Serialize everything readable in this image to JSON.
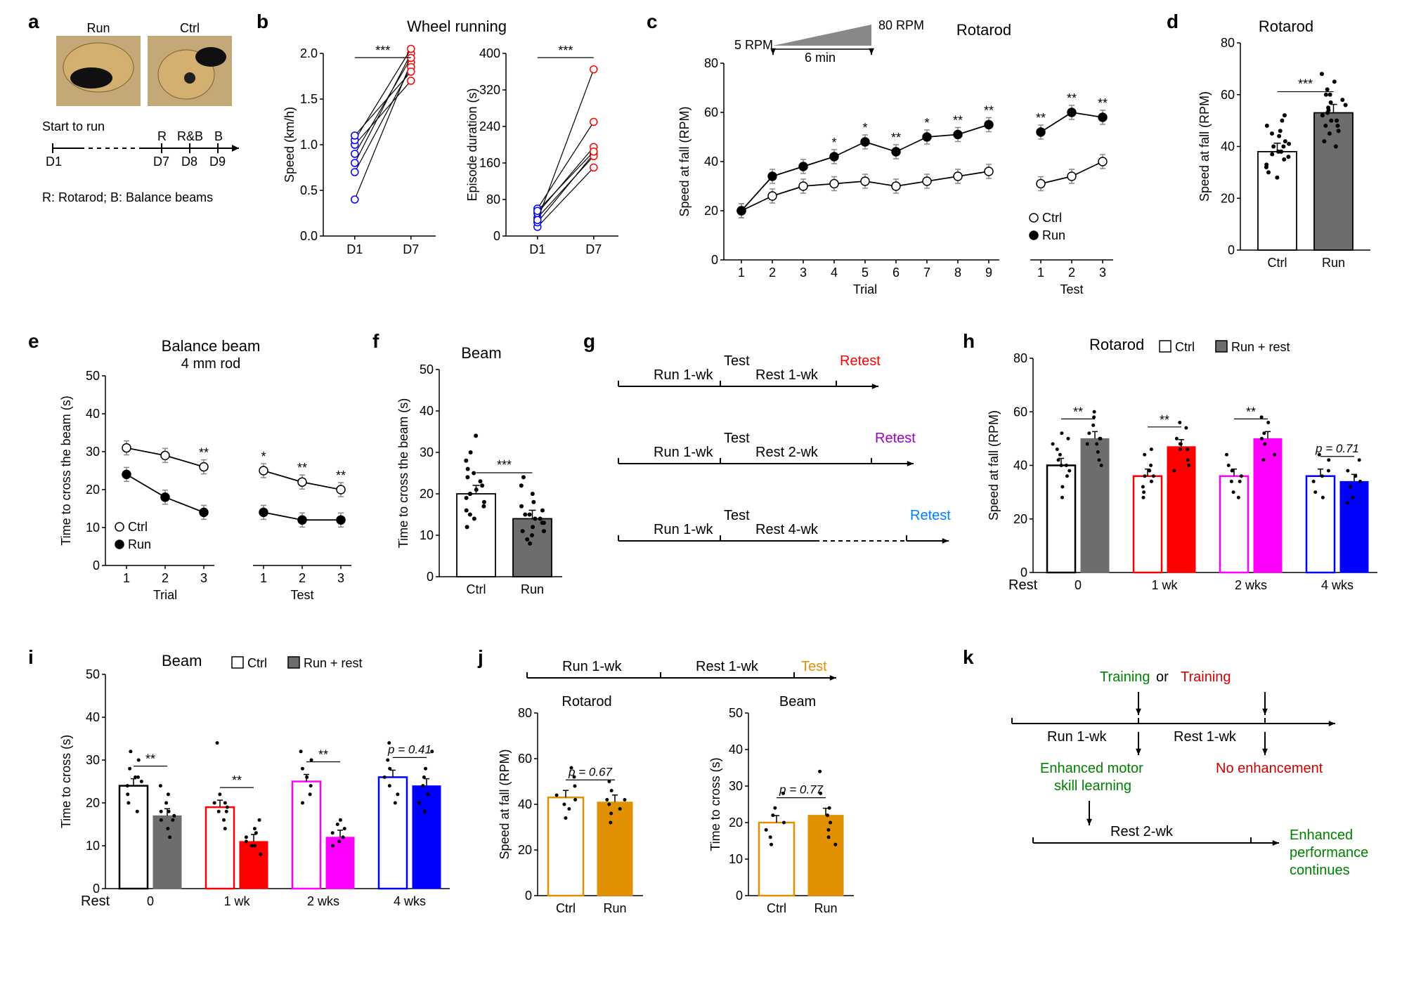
{
  "labels": {
    "a": "a",
    "b": "b",
    "c": "c",
    "d": "d",
    "e": "e",
    "f": "f",
    "g": "g",
    "h": "h",
    "i": "i",
    "j": "j",
    "k": "k"
  },
  "panel_a": {
    "run_label": "Run",
    "ctrl_label": "Ctrl",
    "timeline": {
      "start": "Start to run",
      "d1": "D1",
      "d7": "D7",
      "d8": "D8",
      "d9": "D9",
      "r": "R",
      "rb": "R&B",
      "b": "B"
    },
    "legend": "R: Rotarod; B: Balance beams"
  },
  "panel_b": {
    "title": "Wheel running",
    "chart1": {
      "ylabel": "Speed (km/h)",
      "ylim": [
        0,
        2.0
      ],
      "ytick_step": 0.5,
      "x": [
        "D1",
        "D7"
      ],
      "sig": "***",
      "d1_color": "#0000ff",
      "d7_color": "#ff0000",
      "pairs": [
        [
          0.4,
          1.9
        ],
        [
          0.7,
          1.85
        ],
        [
          0.8,
          2.0
        ],
        [
          0.9,
          1.95
        ],
        [
          1.0,
          1.7
        ],
        [
          1.05,
          2.05
        ],
        [
          1.1,
          1.8
        ]
      ]
    },
    "chart2": {
      "ylabel": "Episode duration (s)",
      "ylim": [
        0,
        400
      ],
      "ytick_step": 80,
      "x": [
        "D1",
        "D7"
      ],
      "sig": "***",
      "pairs": [
        [
          20,
          150
        ],
        [
          30,
          180
        ],
        [
          40,
          175
        ],
        [
          50,
          195
        ],
        [
          60,
          250
        ],
        [
          55,
          185
        ],
        [
          35,
          365
        ]
      ]
    }
  },
  "panel_c": {
    "title": "Rotarod",
    "schematic": {
      "lo": "5 RPM",
      "hi": "80 RPM",
      "dur": "6 min"
    },
    "ylabel": "Speed at fall (RPM)",
    "ylim": [
      0,
      80
    ],
    "ytick_step": 20,
    "x_trial": [
      1,
      2,
      3,
      4,
      5,
      6,
      7,
      8,
      9
    ],
    "x_test": [
      1,
      2,
      3
    ],
    "xlabel1": "Trial",
    "xlabel2": "Test",
    "ctrl_label": "Ctrl",
    "run_label": "Run",
    "ctrl_color": "#ffffff",
    "run_color": "#000000",
    "line_color": "#000000",
    "err_color": "#888888",
    "ctrl_trial": [
      20,
      26,
      30,
      31,
      32,
      30,
      32,
      34,
      36
    ],
    "run_trial": [
      20,
      34,
      38,
      42,
      48,
      44,
      50,
      51,
      55
    ],
    "ctrl_test": [
      31,
      34,
      40
    ],
    "run_test": [
      52,
      60,
      58
    ],
    "sig_trial": [
      "",
      "",
      "",
      "*",
      "*",
      "**",
      "*",
      "**",
      "**"
    ],
    "sig_test": [
      "**",
      "**",
      "**"
    ]
  },
  "panel_d": {
    "title": "Rotarod",
    "ylabel": "Speed at fall (RPM)",
    "ylim": [
      0,
      80
    ],
    "ytick_step": 20,
    "x": [
      "Ctrl",
      "Run"
    ],
    "ctrl_val": 38,
    "run_val": 53,
    "ctrl_fill": "#ffffff",
    "run_fill": "#6d6d6d",
    "stroke": "#000000",
    "sig": "***",
    "ctrl_pts": [
      30,
      32,
      35,
      36,
      38,
      38,
      40,
      40,
      42,
      44,
      46,
      48,
      50,
      52,
      33,
      28,
      45,
      38,
      41,
      37
    ],
    "run_pts": [
      40,
      42,
      45,
      48,
      50,
      52,
      54,
      55,
      56,
      58,
      60,
      62,
      65,
      68,
      60,
      57,
      53,
      48,
      50,
      46
    ]
  },
  "panel_e": {
    "title": "Balance beam",
    "subtitle": "4 mm rod",
    "ylabel": "Time to cross the beam (s)",
    "ylim": [
      0,
      50
    ],
    "ytick_step": 10,
    "x_trial": [
      1,
      2,
      3
    ],
    "x_test": [
      1,
      2,
      3
    ],
    "xlabel1": "Trial",
    "xlabel2": "Test",
    "ctrl_label": "Ctrl",
    "run_label": "Run",
    "ctrl_trial": [
      31,
      29,
      26
    ],
    "run_trial": [
      24,
      18,
      14
    ],
    "ctrl_test": [
      25,
      22,
      20
    ],
    "run_test": [
      14,
      12,
      12
    ],
    "sig_trial": [
      "",
      "",
      "**"
    ],
    "sig_test": [
      "*",
      "**",
      "**"
    ]
  },
  "panel_f": {
    "title": "Beam",
    "ylabel": "Time to cross the beam (s)",
    "ylim": [
      0,
      50
    ],
    "ytick_step": 10,
    "x": [
      "Ctrl",
      "Run"
    ],
    "ctrl_val": 20,
    "run_val": 14,
    "ctrl_fill": "#ffffff",
    "run_fill": "#6d6d6d",
    "sig": "***",
    "ctrl_pts": [
      12,
      14,
      16,
      18,
      19,
      20,
      20,
      21,
      22,
      24,
      26,
      28,
      30,
      34,
      15,
      23,
      25,
      17
    ],
    "run_pts": [
      8,
      10,
      11,
      12,
      13,
      14,
      14,
      15,
      16,
      17,
      18,
      20,
      22,
      24,
      9,
      13,
      15,
      11
    ]
  },
  "panel_g": {
    "rows": [
      {
        "run": "Run 1-wk",
        "test": "Test",
        "rest": "Rest 1-wk",
        "retest": "Retest",
        "retest_color": "#ff0000"
      },
      {
        "run": "Run 1-wk",
        "test": "Test",
        "rest": "Rest 2-wk",
        "retest": "Retest",
        "retest_color": "#a000c0"
      },
      {
        "run": "Run 1-wk",
        "test": "Test",
        "rest": "Rest 4-wk",
        "retest": "Retest",
        "retest_color": "#0080ff"
      }
    ]
  },
  "panel_h": {
    "title": "Rotarod",
    "legend_ctrl": "Ctrl",
    "legend_run": "Run + rest",
    "ylabel": "Speed at fall (RPM)",
    "ylim": [
      0,
      80
    ],
    "ytick_step": 20,
    "xlabel": "Rest",
    "groups": [
      {
        "label": "0",
        "ctrl": 40,
        "run": 50,
        "sig": "**",
        "ctrl_color": "#000000",
        "run_fill": "#6d6d6d",
        "p": null
      },
      {
        "label": "1 wk",
        "ctrl": 36,
        "run": 47,
        "sig": "**",
        "ctrl_color": "#ff0000",
        "run_fill": "#ff0000",
        "p": null
      },
      {
        "label": "2 wks",
        "ctrl": 36,
        "run": 50,
        "sig": "**",
        "ctrl_color": "#ff00ff",
        "run_fill": "#ff00ff",
        "p": null
      },
      {
        "label": "4 wks",
        "ctrl": 36,
        "run": 34,
        "sig": "",
        "ctrl_color": "#0000ff",
        "run_fill": "#0000ff",
        "p": "p = 0.71"
      }
    ],
    "scatter_ctrl": [
      [
        28,
        32,
        36,
        38,
        40,
        42,
        44,
        46,
        48,
        50,
        52,
        40
      ],
      [
        28,
        30,
        32,
        34,
        36,
        38,
        40,
        44,
        46,
        36
      ],
      [
        28,
        30,
        34,
        36,
        38,
        40,
        44,
        34
      ],
      [
        28,
        30,
        34,
        36,
        38,
        42,
        44
      ]
    ],
    "scatter_run": [
      [
        40,
        42,
        45,
        48,
        50,
        52,
        55,
        58,
        60,
        48,
        50
      ],
      [
        38,
        40,
        42,
        46,
        48,
        50,
        54,
        56,
        46,
        48
      ],
      [
        42,
        44,
        48,
        50,
        52,
        56,
        58
      ],
      [
        26,
        28,
        32,
        34,
        36,
        38,
        42
      ]
    ]
  },
  "panel_i": {
    "title": "Beam",
    "legend_ctrl": "Ctrl",
    "legend_run": "Run + rest",
    "ylabel": "Time to cross (s)",
    "ylim": [
      0,
      50
    ],
    "ytick_step": 10,
    "xlabel": "Rest",
    "groups": [
      {
        "label": "0",
        "ctrl": 24,
        "run": 17,
        "sig": "**",
        "ctrl_color": "#000000",
        "run_fill": "#6d6d6d",
        "p": null
      },
      {
        "label": "1 wk",
        "ctrl": 19,
        "run": 11,
        "sig": "**",
        "ctrl_color": "#ff0000",
        "run_fill": "#ff0000",
        "p": null
      },
      {
        "label": "2 wks",
        "ctrl": 25,
        "run": 12,
        "sig": "**",
        "ctrl_color": "#ff00ff",
        "run_fill": "#ff00ff",
        "p": null
      },
      {
        "label": "4 wks",
        "ctrl": 26,
        "run": 24,
        "sig": "",
        "ctrl_color": "#0000ff",
        "run_fill": "#0000ff",
        "p": "p = 0.41"
      }
    ],
    "scatter_ctrl": [
      [
        18,
        20,
        22,
        24,
        25,
        26,
        28,
        30,
        32,
        26
      ],
      [
        14,
        16,
        18,
        19,
        20,
        22,
        34,
        18,
        20
      ],
      [
        20,
        22,
        24,
        26,
        28,
        30,
        32
      ],
      [
        20,
        22,
        24,
        26,
        28,
        30,
        34
      ]
    ],
    "scatter_run": [
      [
        12,
        14,
        16,
        17,
        18,
        20,
        22,
        24,
        16,
        18
      ],
      [
        8,
        10,
        11,
        12,
        13,
        14,
        16,
        10
      ],
      [
        10,
        11,
        12,
        13,
        14,
        15,
        16
      ],
      [
        18,
        20,
        22,
        24,
        26,
        28,
        32
      ]
    ]
  },
  "panel_j": {
    "timeline": {
      "run": "Run 1-wk",
      "rest": "Rest 1-wk",
      "test": "Test",
      "test_color": "#e09000"
    },
    "chart1": {
      "title": "Rotarod",
      "ylabel": "Speed at fall (RPM)",
      "ylim": [
        0,
        80
      ],
      "ytick_step": 20,
      "x": [
        "Ctrl",
        "Run"
      ],
      "ctrl_val": 43,
      "run_val": 41,
      "p": "p = 0.67",
      "stroke": "#e09000",
      "run_fill": "#e09000",
      "ctrl_pts": [
        34,
        38,
        40,
        42,
        44,
        48,
        52,
        56
      ],
      "run_pts": [
        32,
        36,
        38,
        40,
        42,
        46,
        50,
        42
      ]
    },
    "chart2": {
      "title": "Beam",
      "ylabel": "Time to cross (s)",
      "ylim": [
        0,
        50
      ],
      "ytick_step": 10,
      "x": [
        "Ctrl",
        "Run"
      ],
      "ctrl_val": 20,
      "run_val": 22,
      "p": "p = 0.77",
      "stroke": "#e09000",
      "run_fill": "#e09000",
      "ctrl_pts": [
        14,
        16,
        18,
        20,
        22,
        24,
        28
      ],
      "run_pts": [
        14,
        16,
        20,
        22,
        24,
        28,
        34,
        18
      ]
    }
  },
  "panel_k": {
    "training1": "Training",
    "or": "or",
    "training2": "Training",
    "run": "Run 1-wk",
    "rest1": "Rest 1-wk",
    "enhanced1": "Enhanced motor",
    "enhanced2": "skill learning",
    "no_enh": "No enhancement",
    "rest2": "Rest 2-wk",
    "final1": "Enhanced",
    "final2": "performance",
    "final3": "continues",
    "green": "#008000",
    "red": "#d00000"
  }
}
